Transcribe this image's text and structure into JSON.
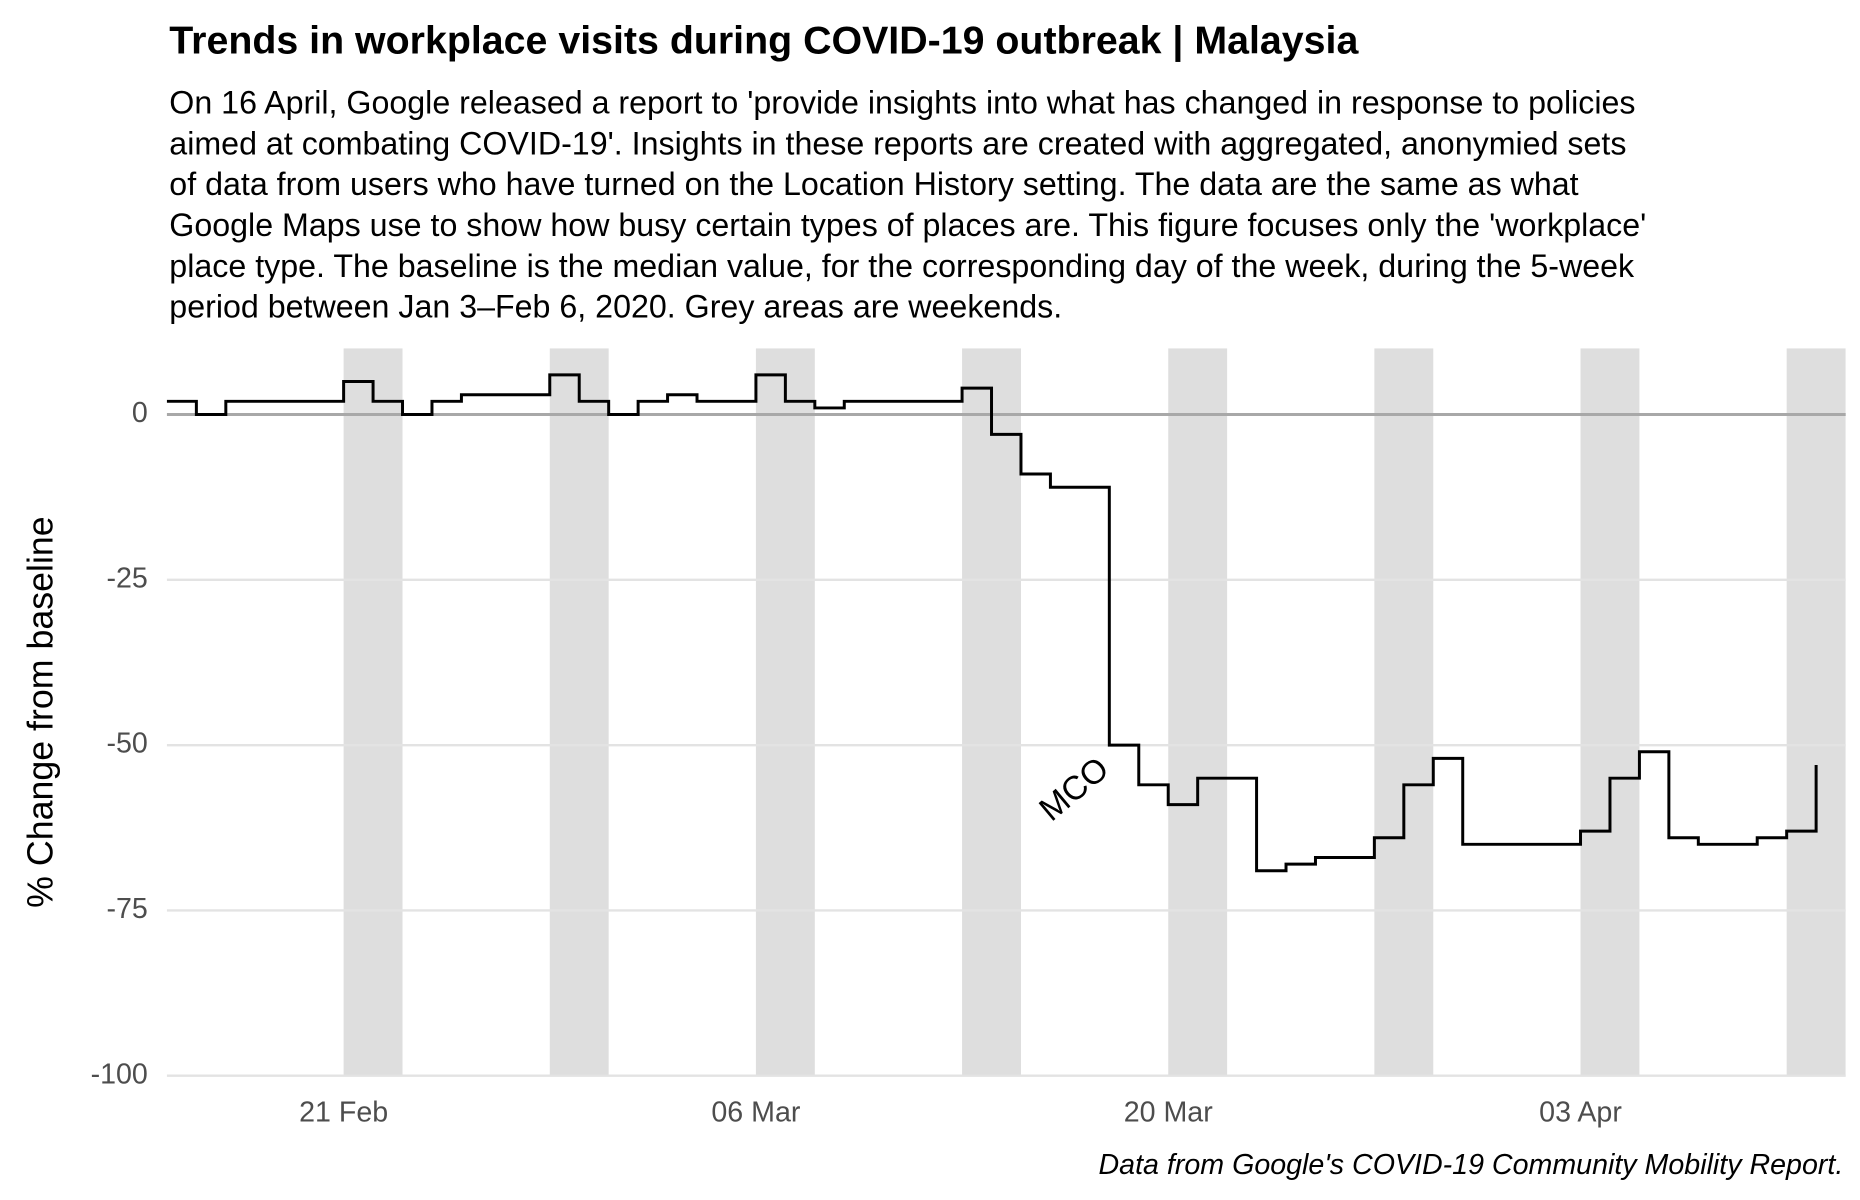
{
  "chart_data": {
    "type": "step",
    "title": "Trends in workplace visits during COVID-19 outbreak | Malaysia",
    "subtitle": [
      "On 16 April, Google released a report to 'provide insights into what has changed in response to policies",
      "aimed at combating COVID-19'. Insights in these reports are created with aggregated, anonymied sets",
      "of data from users who have turned on the Location History setting. The data are the same as what",
      "Google Maps use to show how busy certain types of places are. This figure focuses only the 'workplace'",
      "place type. The baseline is the median value, for the corresponding day of the week, during the 5-week",
      "period between Jan 3–Feb 6, 2020. Grey areas are weekends."
    ],
    "y_label": "% Change from baseline",
    "caption": "Data from Google's COVID-19 Community Mobility Report.",
    "annotation": "MCO",
    "x": [
      "15 Feb",
      "16 Feb",
      "17 Feb",
      "18 Feb",
      "19 Feb",
      "20 Feb",
      "21 Feb",
      "22 Feb",
      "23 Feb",
      "24 Feb",
      "25 Feb",
      "26 Feb",
      "27 Feb",
      "28 Feb",
      "29 Feb",
      "01 Mar",
      "02 Mar",
      "03 Mar",
      "04 Mar",
      "05 Mar",
      "06 Mar",
      "07 Mar",
      "08 Mar",
      "09 Mar",
      "10 Mar",
      "11 Mar",
      "12 Mar",
      "13 Mar",
      "14 Mar",
      "15 Mar",
      "16 Mar",
      "17 Mar",
      "18 Mar",
      "19 Mar",
      "20 Mar",
      "21 Mar",
      "22 Mar",
      "23 Mar",
      "24 Mar",
      "25 Mar",
      "26 Mar",
      "27 Mar",
      "28 Mar",
      "29 Mar",
      "30 Mar",
      "31 Mar",
      "01 Apr",
      "02 Apr",
      "03 Apr",
      "04 Apr",
      "05 Apr",
      "06 Apr",
      "07 Apr",
      "08 Apr",
      "09 Apr",
      "10 Apr",
      "11 Apr"
    ],
    "values": [
      2,
      0,
      2,
      2,
      2,
      2,
      5,
      2,
      0,
      2,
      3,
      3,
      3,
      6,
      2,
      0,
      2,
      3,
      2,
      2,
      6,
      2,
      1,
      2,
      2,
      2,
      2,
      4,
      -3,
      -9,
      -11,
      -11,
      -50,
      -56,
      -59,
      -55,
      -55,
      -69,
      -68,
      -67,
      -67,
      -64,
      -56,
      -52,
      -65,
      -65,
      -65,
      -65,
      -63,
      -55,
      -51,
      -64,
      -65,
      -65,
      -64,
      -63,
      -53
    ],
    "color": "#000000",
    "ylim": [
      -100,
      10
    ],
    "yticks": [
      0,
      -25,
      -50,
      -75,
      -100
    ],
    "xticks": [
      "21 Feb",
      "06 Mar",
      "20 Mar",
      "03 Apr"
    ],
    "grid": true
  }
}
